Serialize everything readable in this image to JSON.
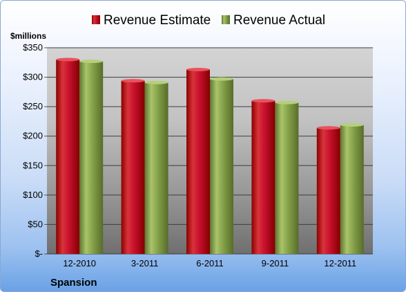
{
  "chart_data": {
    "type": "bar",
    "categories": [
      "12-2010",
      "3-2011",
      "6-2011",
      "9-2011",
      "12-2011"
    ],
    "series": [
      {
        "name": "Revenue Estimate",
        "values": [
          330,
          294,
          313,
          260,
          214
        ],
        "color": "#c8102e"
      },
      {
        "name": "Revenue Actual",
        "values": [
          327,
          291,
          297,
          257,
          219
        ],
        "color": "#86a24a"
      }
    ],
    "units_label": "$millions",
    "ylim": [
      0,
      350
    ],
    "yticks": [
      0,
      50,
      100,
      150,
      200,
      250,
      300,
      350
    ],
    "ytick_labels": [
      "$-",
      "$50",
      "$100",
      "$150",
      "$200",
      "$250",
      "$300",
      "$350"
    ],
    "grid": true,
    "legend_position": "top",
    "company": "Spansion"
  }
}
